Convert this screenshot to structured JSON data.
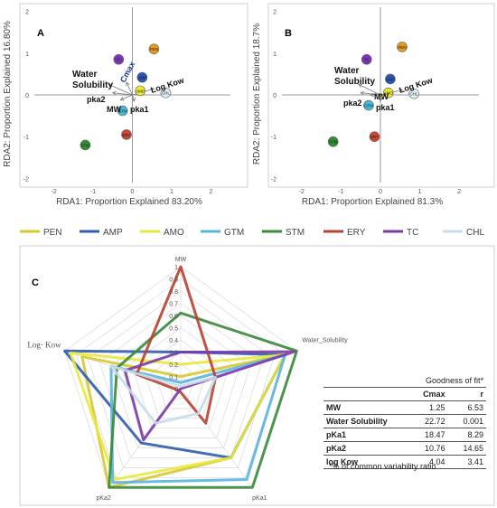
{
  "panels": {
    "A": {
      "letter": "A",
      "xlabel": "RDA1: Proportion Explained 83.20%",
      "ylabel": "RDA2: Proportion Explained 16.80%"
    },
    "B": {
      "letter": "B",
      "xlabel": "RDA1: Proportion Explained 81.3%",
      "ylabel": "RDA2: Proportion Explained 18.7%"
    },
    "C": {
      "letter": "C"
    }
  },
  "chart_data": [
    {
      "type": "scatter",
      "name": "A",
      "xlim": [
        -2.5,
        2.5
      ],
      "ylim": [
        -2.1,
        2.1
      ],
      "xticks": [
        -2,
        -1,
        0,
        1,
        2
      ],
      "yticks": [
        -2,
        -1,
        0,
        1,
        2
      ],
      "points": [
        {
          "label": "PEN",
          "x": 0.55,
          "y": 1.1,
          "color": "#e69a1e"
        },
        {
          "label": "TC",
          "x": -0.35,
          "y": 0.85,
          "color": "#7a35b8"
        },
        {
          "label": "AMP",
          "x": 0.25,
          "y": 0.42,
          "color": "#2c55b8"
        },
        {
          "label": "AMO",
          "x": 0.2,
          "y": 0.1,
          "color": "#e8e832"
        },
        {
          "label": "CHL",
          "x": 0.85,
          "y": 0.05,
          "color": "#dfeef2"
        },
        {
          "label": "GTM",
          "x": -0.25,
          "y": -0.38,
          "color": "#4ab8d8"
        },
        {
          "label": "ERY",
          "x": -0.15,
          "y": -0.95,
          "color": "#c84632"
        },
        {
          "label": "STM",
          "x": -1.2,
          "y": -1.2,
          "color": "#2f8f2f"
        }
      ],
      "vectors": [
        {
          "label": "Water Solubility",
          "x": -0.6,
          "y": 0.25
        },
        {
          "label": "Cmax",
          "x": -0.15,
          "y": 0.3
        },
        {
          "label": "pka2",
          "x": -0.5,
          "y": 0.05
        },
        {
          "label": "MW",
          "x": -0.3,
          "y": -0.12
        },
        {
          "label": "pka1",
          "x": 0.05,
          "y": -0.15
        },
        {
          "label": "Log Kow",
          "x": 0.55,
          "y": 0.15
        }
      ]
    },
    {
      "type": "scatter",
      "name": "B",
      "xlim": [
        -2.5,
        2.5
      ],
      "ylim": [
        -2.1,
        2.1
      ],
      "xticks": [
        -2,
        -1,
        0,
        1,
        2
      ],
      "yticks": [
        -2,
        -1,
        0,
        1,
        2
      ],
      "points": [
        {
          "label": "PEN",
          "x": 0.55,
          "y": 1.15,
          "color": "#e69a1e"
        },
        {
          "label": "TC",
          "x": -0.35,
          "y": 0.85,
          "color": "#7a35b8"
        },
        {
          "label": "AMP",
          "x": 0.25,
          "y": 0.38,
          "color": "#2c55b8"
        },
        {
          "label": "AMO",
          "x": 0.2,
          "y": 0.05,
          "color": "#e8e832"
        },
        {
          "label": "CHL",
          "x": 0.85,
          "y": 0.03,
          "color": "#dfeef2"
        },
        {
          "label": "GTM",
          "x": -0.3,
          "y": -0.25,
          "color": "#4ab8d8"
        },
        {
          "label": "ERY",
          "x": -0.15,
          "y": -1.0,
          "color": "#c84632"
        },
        {
          "label": "STM",
          "x": -1.2,
          "y": -1.12,
          "color": "#2f8f2f"
        }
      ],
      "vectors": [
        {
          "label": "Water Solubility",
          "x": -0.55,
          "y": 0.25
        },
        {
          "label": "pka2",
          "x": -0.5,
          "y": 0.05
        },
        {
          "label": "MW",
          "x": -0.25,
          "y": 0.0
        },
        {
          "label": "pka1",
          "x": 0.0,
          "y": -0.15
        },
        {
          "label": "Log Kow",
          "x": 0.55,
          "y": 0.12
        }
      ]
    },
    {
      "type": "radar",
      "name": "C",
      "axes": [
        "MW",
        "Water_Solubility",
        "pKa1",
        "pKa2",
        "Log· Kow"
      ],
      "rticks": [
        "0",
        "0.1",
        "0.2",
        "0.3",
        "0.4",
        "0.5",
        "0.6",
        "0.7",
        "0.8",
        "0.9",
        "1"
      ],
      "legend_position": "top",
      "series": [
        {
          "name": "PEN",
          "color": "#d8c832",
          "values": [
            0.1,
            0.9,
            0.7,
            1.0,
            0.85
          ]
        },
        {
          "name": "AMP",
          "color": "#2f5bb0",
          "values": [
            0.3,
            0.9,
            0.7,
            0.55,
            1.0
          ]
        },
        {
          "name": "AMO",
          "color": "#e8e840",
          "values": [
            0.2,
            0.9,
            0.7,
            0.92,
            0.95
          ]
        },
        {
          "name": "GTM",
          "color": "#5ab4e0",
          "values": [
            0.05,
            0.9,
            0.92,
            0.95,
            0.6
          ]
        },
        {
          "name": "STM",
          "color": "#3a8a3a",
          "values": [
            0.62,
            1.0,
            1.0,
            1.0,
            0.55
          ]
        },
        {
          "name": "ERY",
          "color": "#b84030",
          "values": [
            1.0,
            0.3,
            0.35,
            0.02,
            0.38
          ]
        },
        {
          "name": "TC",
          "color": "#7a3aa8",
          "values": [
            0.3,
            0.98,
            0.0,
            0.52,
            0.48
          ]
        },
        {
          "name": "CHL",
          "color": "#c8dce8",
          "values": [
            0.02,
            0.3,
            0.25,
            0.35,
            0.6
          ]
        }
      ]
    }
  ],
  "table": {
    "caption": "Goodness of fit*",
    "columns": [
      "Cmax",
      "r"
    ],
    "rows": [
      {
        "label": "MW",
        "cmax": "1.25",
        "r": "6.53"
      },
      {
        "label": "Water Solubility",
        "cmax": "22.72",
        "r": "0.001"
      },
      {
        "label": "pKa1",
        "cmax": "18.47",
        "r": "8.29"
      },
      {
        "label": "pKa2",
        "cmax": "10.76",
        "r": "14.65"
      },
      {
        "label": "log Kow",
        "cmax": "4.04",
        "r": "3.41"
      }
    ],
    "footnote": "*% of common variability ratio"
  }
}
